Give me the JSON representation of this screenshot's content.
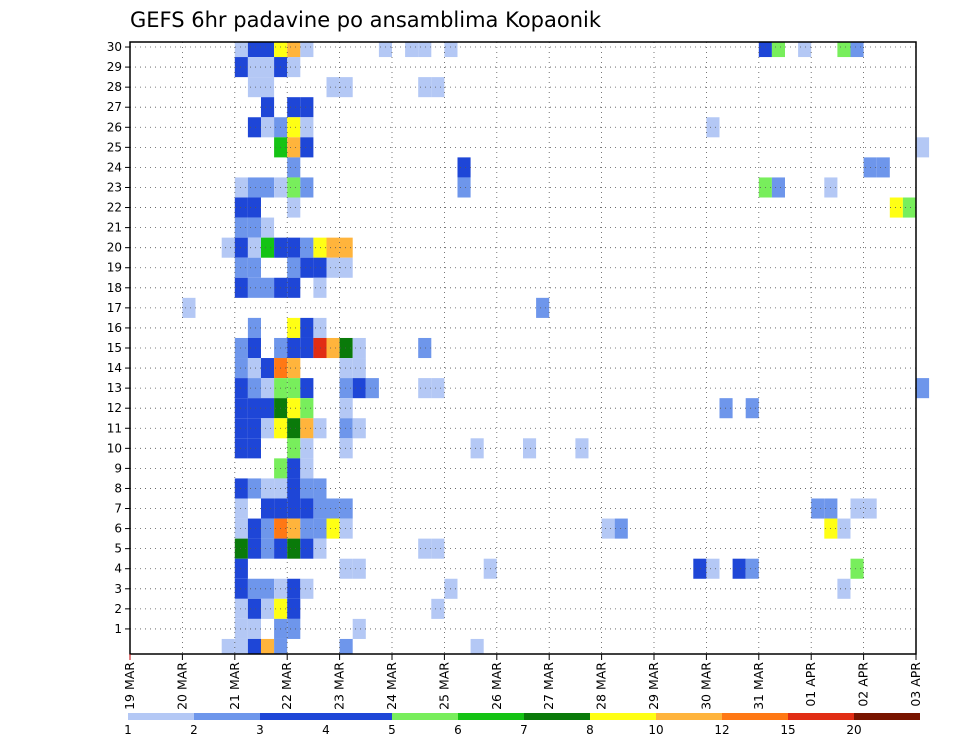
{
  "chart_data": {
    "type": "heatmap",
    "title": "GEFS 6hr padavine po ansamblima Kopaonik",
    "y_categories": [
      "1",
      "2",
      "3",
      "4",
      "5",
      "6",
      "7",
      "8",
      "9",
      "10",
      "11",
      "12",
      "13",
      "14",
      "15",
      "16",
      "17",
      "18",
      "19",
      "20",
      "21",
      "22",
      "23",
      "24",
      "25",
      "26",
      "27",
      "28",
      "29",
      "30"
    ],
    "x_ticks": [
      "19 MAR",
      "20 MAR",
      "21 MAR",
      "22 MAR",
      "23 MAR",
      "24 MAR",
      "25 MAR",
      "26 MAR",
      "27 MAR",
      "28 MAR",
      "29 MAR",
      "30 MAR",
      "31 MAR",
      "01 APR",
      "02 APR",
      "03 APR"
    ],
    "x_unit": "6h steps from 19 MAR 00Z",
    "grid": true,
    "legend": {
      "position": "bottom",
      "levels": [
        "1",
        "2",
        "3",
        "4",
        "5",
        "6",
        "7",
        "8",
        "10",
        "12",
        "15",
        "20"
      ],
      "colors": [
        "#b4c8f5",
        "#6e96eb",
        "#1e46d7",
        "#1e46d7",
        "#78ee5c",
        "#14c314",
        "#0a7a0a",
        "#ffff14",
        "#ffb43c",
        "#ff7814",
        "#e12d14",
        "#781400"
      ]
    },
    "cells": [
      {
        "m": 30,
        "s": 8,
        "v": 1
      },
      {
        "m": 30,
        "s": 9,
        "v": 3
      },
      {
        "m": 30,
        "s": 10,
        "v": 3
      },
      {
        "m": 30,
        "s": 11,
        "v": 8
      },
      {
        "m": 30,
        "s": 12,
        "v": 10
      },
      {
        "m": 30,
        "s": 13,
        "v": 1
      },
      {
        "m": 30,
        "s": 19,
        "v": 1
      },
      {
        "m": 30,
        "s": 21,
        "v": 1
      },
      {
        "m": 30,
        "s": 22,
        "v": 1
      },
      {
        "m": 30,
        "s": 24,
        "v": 1
      },
      {
        "m": 30,
        "s": 48,
        "v": 3
      },
      {
        "m": 30,
        "s": 49,
        "v": 5
      },
      {
        "m": 30,
        "s": 51,
        "v": 1
      },
      {
        "m": 30,
        "s": 54,
        "v": 5
      },
      {
        "m": 30,
        "s": 55,
        "v": 2
      },
      {
        "m": 29,
        "s": 8,
        "v": 4
      },
      {
        "m": 29,
        "s": 9,
        "v": 1
      },
      {
        "m": 29,
        "s": 10,
        "v": 1
      },
      {
        "m": 29,
        "s": 11,
        "v": 3
      },
      {
        "m": 29,
        "s": 12,
        "v": 1
      },
      {
        "m": 28,
        "s": 9,
        "v": 1
      },
      {
        "m": 28,
        "s": 10,
        "v": 1
      },
      {
        "m": 28,
        "s": 15,
        "v": 1
      },
      {
        "m": 28,
        "s": 16,
        "v": 1
      },
      {
        "m": 28,
        "s": 22,
        "v": 1
      },
      {
        "m": 28,
        "s": 23,
        "v": 1
      },
      {
        "m": 27,
        "s": 10,
        "v": 3
      },
      {
        "m": 27,
        "s": 12,
        "v": 3
      },
      {
        "m": 27,
        "s": 13,
        "v": 3
      },
      {
        "m": 26,
        "s": 9,
        "v": 3
      },
      {
        "m": 26,
        "s": 10,
        "v": 1
      },
      {
        "m": 26,
        "s": 11,
        "v": 2
      },
      {
        "m": 26,
        "s": 12,
        "v": 8
      },
      {
        "m": 26,
        "s": 13,
        "v": 1
      },
      {
        "m": 26,
        "s": 44,
        "v": 1
      },
      {
        "m": 25,
        "s": 11,
        "v": 6
      },
      {
        "m": 25,
        "s": 12,
        "v": 10
      },
      {
        "m": 25,
        "s": 13,
        "v": 3
      },
      {
        "m": 25,
        "s": 60,
        "v": 1
      },
      {
        "m": 24,
        "s": 12,
        "v": 2
      },
      {
        "m": 24,
        "s": 25,
        "v": 3
      },
      {
        "m": 24,
        "s": 56,
        "v": 2
      },
      {
        "m": 24,
        "s": 57,
        "v": 2
      },
      {
        "m": 23,
        "s": 8,
        "v": 1
      },
      {
        "m": 23,
        "s": 9,
        "v": 2
      },
      {
        "m": 23,
        "s": 10,
        "v": 2
      },
      {
        "m": 23,
        "s": 11,
        "v": 1
      },
      {
        "m": 23,
        "s": 12,
        "v": 5
      },
      {
        "m": 23,
        "s": 13,
        "v": 2
      },
      {
        "m": 23,
        "s": 25,
        "v": 2
      },
      {
        "m": 23,
        "s": 48,
        "v": 5
      },
      {
        "m": 23,
        "s": 49,
        "v": 2
      },
      {
        "m": 23,
        "s": 53,
        "v": 1
      },
      {
        "m": 22,
        "s": 8,
        "v": 3
      },
      {
        "m": 22,
        "s": 9,
        "v": 3
      },
      {
        "m": 22,
        "s": 12,
        "v": 1
      },
      {
        "m": 22,
        "s": 58,
        "v": 8
      },
      {
        "m": 22,
        "s": 59,
        "v": 5
      },
      {
        "m": 21,
        "s": 8,
        "v": 2
      },
      {
        "m": 21,
        "s": 9,
        "v": 2
      },
      {
        "m": 21,
        "s": 10,
        "v": 1
      },
      {
        "m": 20,
        "s": 7,
        "v": 1
      },
      {
        "m": 20,
        "s": 8,
        "v": 3
      },
      {
        "m": 20,
        "s": 9,
        "v": 1
      },
      {
        "m": 20,
        "s": 10,
        "v": 6
      },
      {
        "m": 20,
        "s": 11,
        "v": 4
      },
      {
        "m": 20,
        "s": 12,
        "v": 4
      },
      {
        "m": 20,
        "s": 13,
        "v": 2
      },
      {
        "m": 20,
        "s": 14,
        "v": 8
      },
      {
        "m": 20,
        "s": 15,
        "v": 10
      },
      {
        "m": 20,
        "s": 16,
        "v": 10
      },
      {
        "m": 19,
        "s": 8,
        "v": 2
      },
      {
        "m": 19,
        "s": 9,
        "v": 2
      },
      {
        "m": 19,
        "s": 12,
        "v": 2
      },
      {
        "m": 19,
        "s": 13,
        "v": 4
      },
      {
        "m": 19,
        "s": 14,
        "v": 4
      },
      {
        "m": 19,
        "s": 15,
        "v": 1
      },
      {
        "m": 19,
        "s": 16,
        "v": 1
      },
      {
        "m": 18,
        "s": 8,
        "v": 3
      },
      {
        "m": 18,
        "s": 9,
        "v": 2
      },
      {
        "m": 18,
        "s": 10,
        "v": 2
      },
      {
        "m": 18,
        "s": 11,
        "v": 3
      },
      {
        "m": 18,
        "s": 12,
        "v": 4
      },
      {
        "m": 18,
        "s": 14,
        "v": 1
      },
      {
        "m": 17,
        "s": 4,
        "v": 1
      },
      {
        "m": 17,
        "s": 31,
        "v": 2
      },
      {
        "m": 16,
        "s": 9,
        "v": 2
      },
      {
        "m": 16,
        "s": 12,
        "v": 8
      },
      {
        "m": 16,
        "s": 13,
        "v": 3
      },
      {
        "m": 16,
        "s": 14,
        "v": 1
      },
      {
        "m": 15,
        "s": 8,
        "v": 2
      },
      {
        "m": 15,
        "s": 9,
        "v": 3
      },
      {
        "m": 15,
        "s": 11,
        "v": 2
      },
      {
        "m": 15,
        "s": 12,
        "v": 4
      },
      {
        "m": 15,
        "s": 13,
        "v": 4
      },
      {
        "m": 15,
        "s": 14,
        "v": 15
      },
      {
        "m": 15,
        "s": 15,
        "v": 10
      },
      {
        "m": 15,
        "s": 16,
        "v": 7
      },
      {
        "m": 15,
        "s": 17,
        "v": 1
      },
      {
        "m": 15,
        "s": 22,
        "v": 2
      },
      {
        "m": 14,
        "s": 8,
        "v": 2
      },
      {
        "m": 14,
        "s": 9,
        "v": 1
      },
      {
        "m": 14,
        "s": 10,
        "v": 4
      },
      {
        "m": 14,
        "s": 11,
        "v": 12
      },
      {
        "m": 14,
        "s": 12,
        "v": 10
      },
      {
        "m": 14,
        "s": 16,
        "v": 1
      },
      {
        "m": 14,
        "s": 17,
        "v": 1
      },
      {
        "m": 13,
        "s": 8,
        "v": 3
      },
      {
        "m": 13,
        "s": 9,
        "v": 2
      },
      {
        "m": 13,
        "s": 10,
        "v": 1
      },
      {
        "m": 13,
        "s": 11,
        "v": 5
      },
      {
        "m": 13,
        "s": 12,
        "v": 5
      },
      {
        "m": 13,
        "s": 13,
        "v": 4
      },
      {
        "m": 13,
        "s": 16,
        "v": 2
      },
      {
        "m": 13,
        "s": 17,
        "v": 3
      },
      {
        "m": 13,
        "s": 18,
        "v": 2
      },
      {
        "m": 13,
        "s": 22,
        "v": 1
      },
      {
        "m": 13,
        "s": 23,
        "v": 1
      },
      {
        "m": 13,
        "s": 60,
        "v": 2
      },
      {
        "m": 12,
        "s": 8,
        "v": 4
      },
      {
        "m": 12,
        "s": 9,
        "v": 4
      },
      {
        "m": 12,
        "s": 10,
        "v": 4
      },
      {
        "m": 12,
        "s": 11,
        "v": 7
      },
      {
        "m": 12,
        "s": 12,
        "v": 8
      },
      {
        "m": 12,
        "s": 13,
        "v": 5
      },
      {
        "m": 12,
        "s": 16,
        "v": 1
      },
      {
        "m": 12,
        "s": 45,
        "v": 2
      },
      {
        "m": 12,
        "s": 47,
        "v": 2
      },
      {
        "m": 11,
        "s": 8,
        "v": 4
      },
      {
        "m": 11,
        "s": 9,
        "v": 4
      },
      {
        "m": 11,
        "s": 10,
        "v": 1
      },
      {
        "m": 11,
        "s": 11,
        "v": 8
      },
      {
        "m": 11,
        "s": 12,
        "v": 7
      },
      {
        "m": 11,
        "s": 13,
        "v": 10
      },
      {
        "m": 11,
        "s": 14,
        "v": 1
      },
      {
        "m": 11,
        "s": 16,
        "v": 2
      },
      {
        "m": 11,
        "s": 17,
        "v": 1
      },
      {
        "m": 10,
        "s": 8,
        "v": 4
      },
      {
        "m": 10,
        "s": 9,
        "v": 4
      },
      {
        "m": 10,
        "s": 12,
        "v": 5
      },
      {
        "m": 10,
        "s": 13,
        "v": 1
      },
      {
        "m": 10,
        "s": 16,
        "v": 1
      },
      {
        "m": 10,
        "s": 26,
        "v": 1
      },
      {
        "m": 10,
        "s": 30,
        "v": 1
      },
      {
        "m": 10,
        "s": 34,
        "v": 1
      },
      {
        "m": 9,
        "s": 11,
        "v": 5
      },
      {
        "m": 9,
        "s": 12,
        "v": 3
      },
      {
        "m": 9,
        "s": 13,
        "v": 1
      },
      {
        "m": 8,
        "s": 8,
        "v": 4
      },
      {
        "m": 8,
        "s": 9,
        "v": 2
      },
      {
        "m": 8,
        "s": 10,
        "v": 1
      },
      {
        "m": 8,
        "s": 11,
        "v": 1
      },
      {
        "m": 8,
        "s": 12,
        "v": 3
      },
      {
        "m": 8,
        "s": 13,
        "v": 2
      },
      {
        "m": 8,
        "s": 14,
        "v": 2
      },
      {
        "m": 7,
        "s": 8,
        "v": 1
      },
      {
        "m": 7,
        "s": 10,
        "v": 4
      },
      {
        "m": 7,
        "s": 11,
        "v": 3
      },
      {
        "m": 7,
        "s": 12,
        "v": 3
      },
      {
        "m": 7,
        "s": 13,
        "v": 3
      },
      {
        "m": 7,
        "s": 14,
        "v": 2
      },
      {
        "m": 7,
        "s": 15,
        "v": 2
      },
      {
        "m": 7,
        "s": 16,
        "v": 2
      },
      {
        "m": 7,
        "s": 52,
        "v": 2
      },
      {
        "m": 7,
        "s": 53,
        "v": 2
      },
      {
        "m": 7,
        "s": 55,
        "v": 1
      },
      {
        "m": 7,
        "s": 56,
        "v": 1
      },
      {
        "m": 6,
        "s": 8,
        "v": 1
      },
      {
        "m": 6,
        "s": 9,
        "v": 3
      },
      {
        "m": 6,
        "s": 10,
        "v": 2
      },
      {
        "m": 6,
        "s": 11,
        "v": 12
      },
      {
        "m": 6,
        "s": 12,
        "v": 10
      },
      {
        "m": 6,
        "s": 13,
        "v": 2
      },
      {
        "m": 6,
        "s": 14,
        "v": 2
      },
      {
        "m": 6,
        "s": 15,
        "v": 8
      },
      {
        "m": 6,
        "s": 16,
        "v": 1
      },
      {
        "m": 6,
        "s": 36,
        "v": 1
      },
      {
        "m": 6,
        "s": 37,
        "v": 2
      },
      {
        "m": 6,
        "s": 53,
        "v": 8
      },
      {
        "m": 6,
        "s": 54,
        "v": 1
      },
      {
        "m": 5,
        "s": 8,
        "v": 7
      },
      {
        "m": 5,
        "s": 9,
        "v": 4
      },
      {
        "m": 5,
        "s": 10,
        "v": 2
      },
      {
        "m": 5,
        "s": 11,
        "v": 4
      },
      {
        "m": 5,
        "s": 12,
        "v": 7
      },
      {
        "m": 5,
        "s": 13,
        "v": 4
      },
      {
        "m": 5,
        "s": 14,
        "v": 1
      },
      {
        "m": 5,
        "s": 22,
        "v": 1
      },
      {
        "m": 5,
        "s": 23,
        "v": 1
      },
      {
        "m": 4,
        "s": 8,
        "v": 3
      },
      {
        "m": 4,
        "s": 16,
        "v": 1
      },
      {
        "m": 4,
        "s": 17,
        "v": 1
      },
      {
        "m": 4,
        "s": 27,
        "v": 1
      },
      {
        "m": 4,
        "s": 43,
        "v": 3
      },
      {
        "m": 4,
        "s": 44,
        "v": 1
      },
      {
        "m": 4,
        "s": 46,
        "v": 4
      },
      {
        "m": 4,
        "s": 47,
        "v": 2
      },
      {
        "m": 4,
        "s": 55,
        "v": 5
      },
      {
        "m": 3,
        "s": 8,
        "v": 3
      },
      {
        "m": 3,
        "s": 9,
        "v": 2
      },
      {
        "m": 3,
        "s": 10,
        "v": 2
      },
      {
        "m": 3,
        "s": 11,
        "v": 1
      },
      {
        "m": 3,
        "s": 12,
        "v": 3
      },
      {
        "m": 3,
        "s": 13,
        "v": 1
      },
      {
        "m": 3,
        "s": 24,
        "v": 1
      },
      {
        "m": 3,
        "s": 54,
        "v": 1
      },
      {
        "m": 2,
        "s": 8,
        "v": 1
      },
      {
        "m": 2,
        "s": 9,
        "v": 3
      },
      {
        "m": 2,
        "s": 10,
        "v": 1
      },
      {
        "m": 2,
        "s": 11,
        "v": 8
      },
      {
        "m": 2,
        "s": 12,
        "v": 3
      },
      {
        "m": 2,
        "s": 23,
        "v": 1
      },
      {
        "m": 1,
        "s": 8,
        "v": 1
      },
      {
        "m": 1,
        "s": 9,
        "v": 1
      },
      {
        "m": 1,
        "s": 11,
        "v": 2
      },
      {
        "m": 1,
        "s": 12,
        "v": 2
      },
      {
        "m": 1,
        "s": 17,
        "v": 1
      },
      {
        "m": 0,
        "s": 7,
        "v": 1
      },
      {
        "m": 0,
        "s": 8,
        "v": 1
      },
      {
        "m": 0,
        "s": 9,
        "v": 3
      },
      {
        "m": 0,
        "s": 10,
        "v": 10
      },
      {
        "m": 0,
        "s": 11,
        "v": 2
      },
      {
        "m": 0,
        "s": 16,
        "v": 2
      },
      {
        "m": 0,
        "s": 26,
        "v": 1
      }
    ]
  }
}
